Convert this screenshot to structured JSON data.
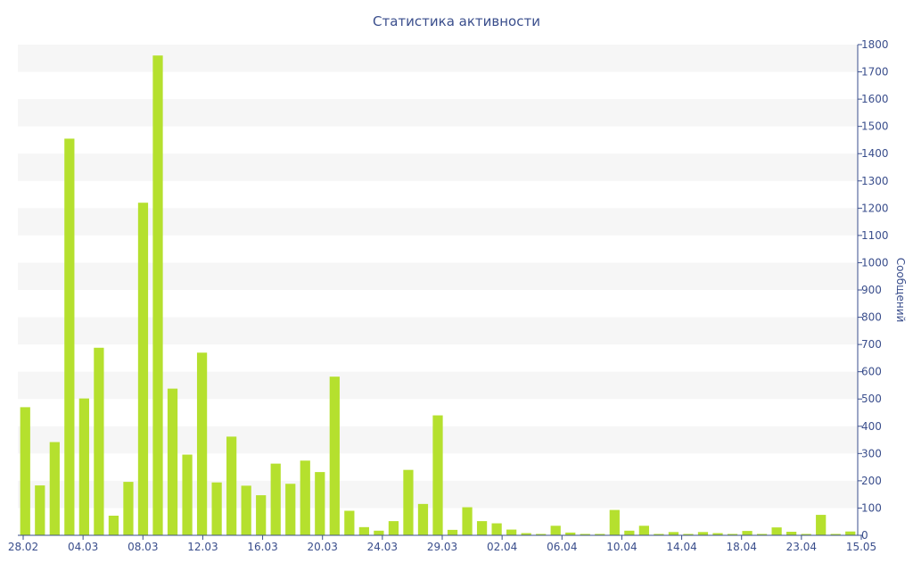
{
  "chart_data": {
    "type": "bar",
    "title": "Статистика активности",
    "xlabel": "",
    "ylabel": "Сообщений",
    "ylim": [
      0,
      1800
    ],
    "y_ticks": [
      0,
      100,
      200,
      300,
      400,
      500,
      600,
      700,
      800,
      900,
      1000,
      1100,
      1200,
      1300,
      1400,
      1500,
      1600,
      1700,
      1800
    ],
    "x_tick_labels": [
      "28.02",
      "04.03",
      "08.03",
      "12.03",
      "16.03",
      "20.03",
      "24.03",
      "29.03",
      "02.04",
      "06.04",
      "10.04",
      "14.04",
      "18.04",
      "23.04",
      "15.05"
    ],
    "grid": true,
    "bar_color": "#b5e02e",
    "values": [
      470,
      183,
      342,
      1455,
      502,
      688,
      72,
      196,
      1220,
      1760,
      538,
      296,
      670,
      194,
      362,
      182,
      147,
      263,
      189,
      274,
      232,
      582,
      90,
      30,
      17,
      52,
      240,
      115,
      440,
      20,
      103,
      52,
      44,
      21,
      8,
      5,
      35,
      10,
      5,
      5,
      93,
      17,
      35,
      5,
      12,
      5,
      12,
      8,
      5,
      16,
      5,
      29,
      13,
      5,
      75,
      5,
      14
    ]
  }
}
